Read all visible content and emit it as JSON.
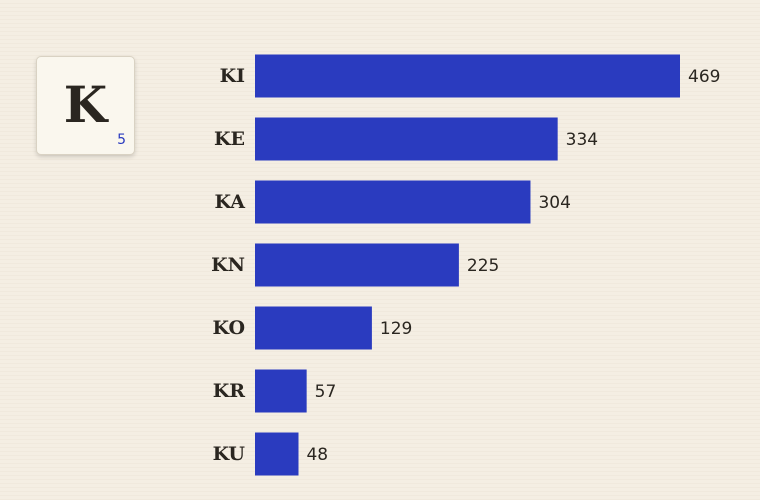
{
  "tile": {
    "letter": "K",
    "score": 5
  },
  "chart_data": {
    "type": "bar",
    "orientation": "horizontal",
    "categories": [
      "KI",
      "KE",
      "KA",
      "KN",
      "KO",
      "KR",
      "KU"
    ],
    "values": [
      469,
      334,
      304,
      225,
      129,
      57,
      48
    ],
    "color": "#2a3bbf"
  }
}
